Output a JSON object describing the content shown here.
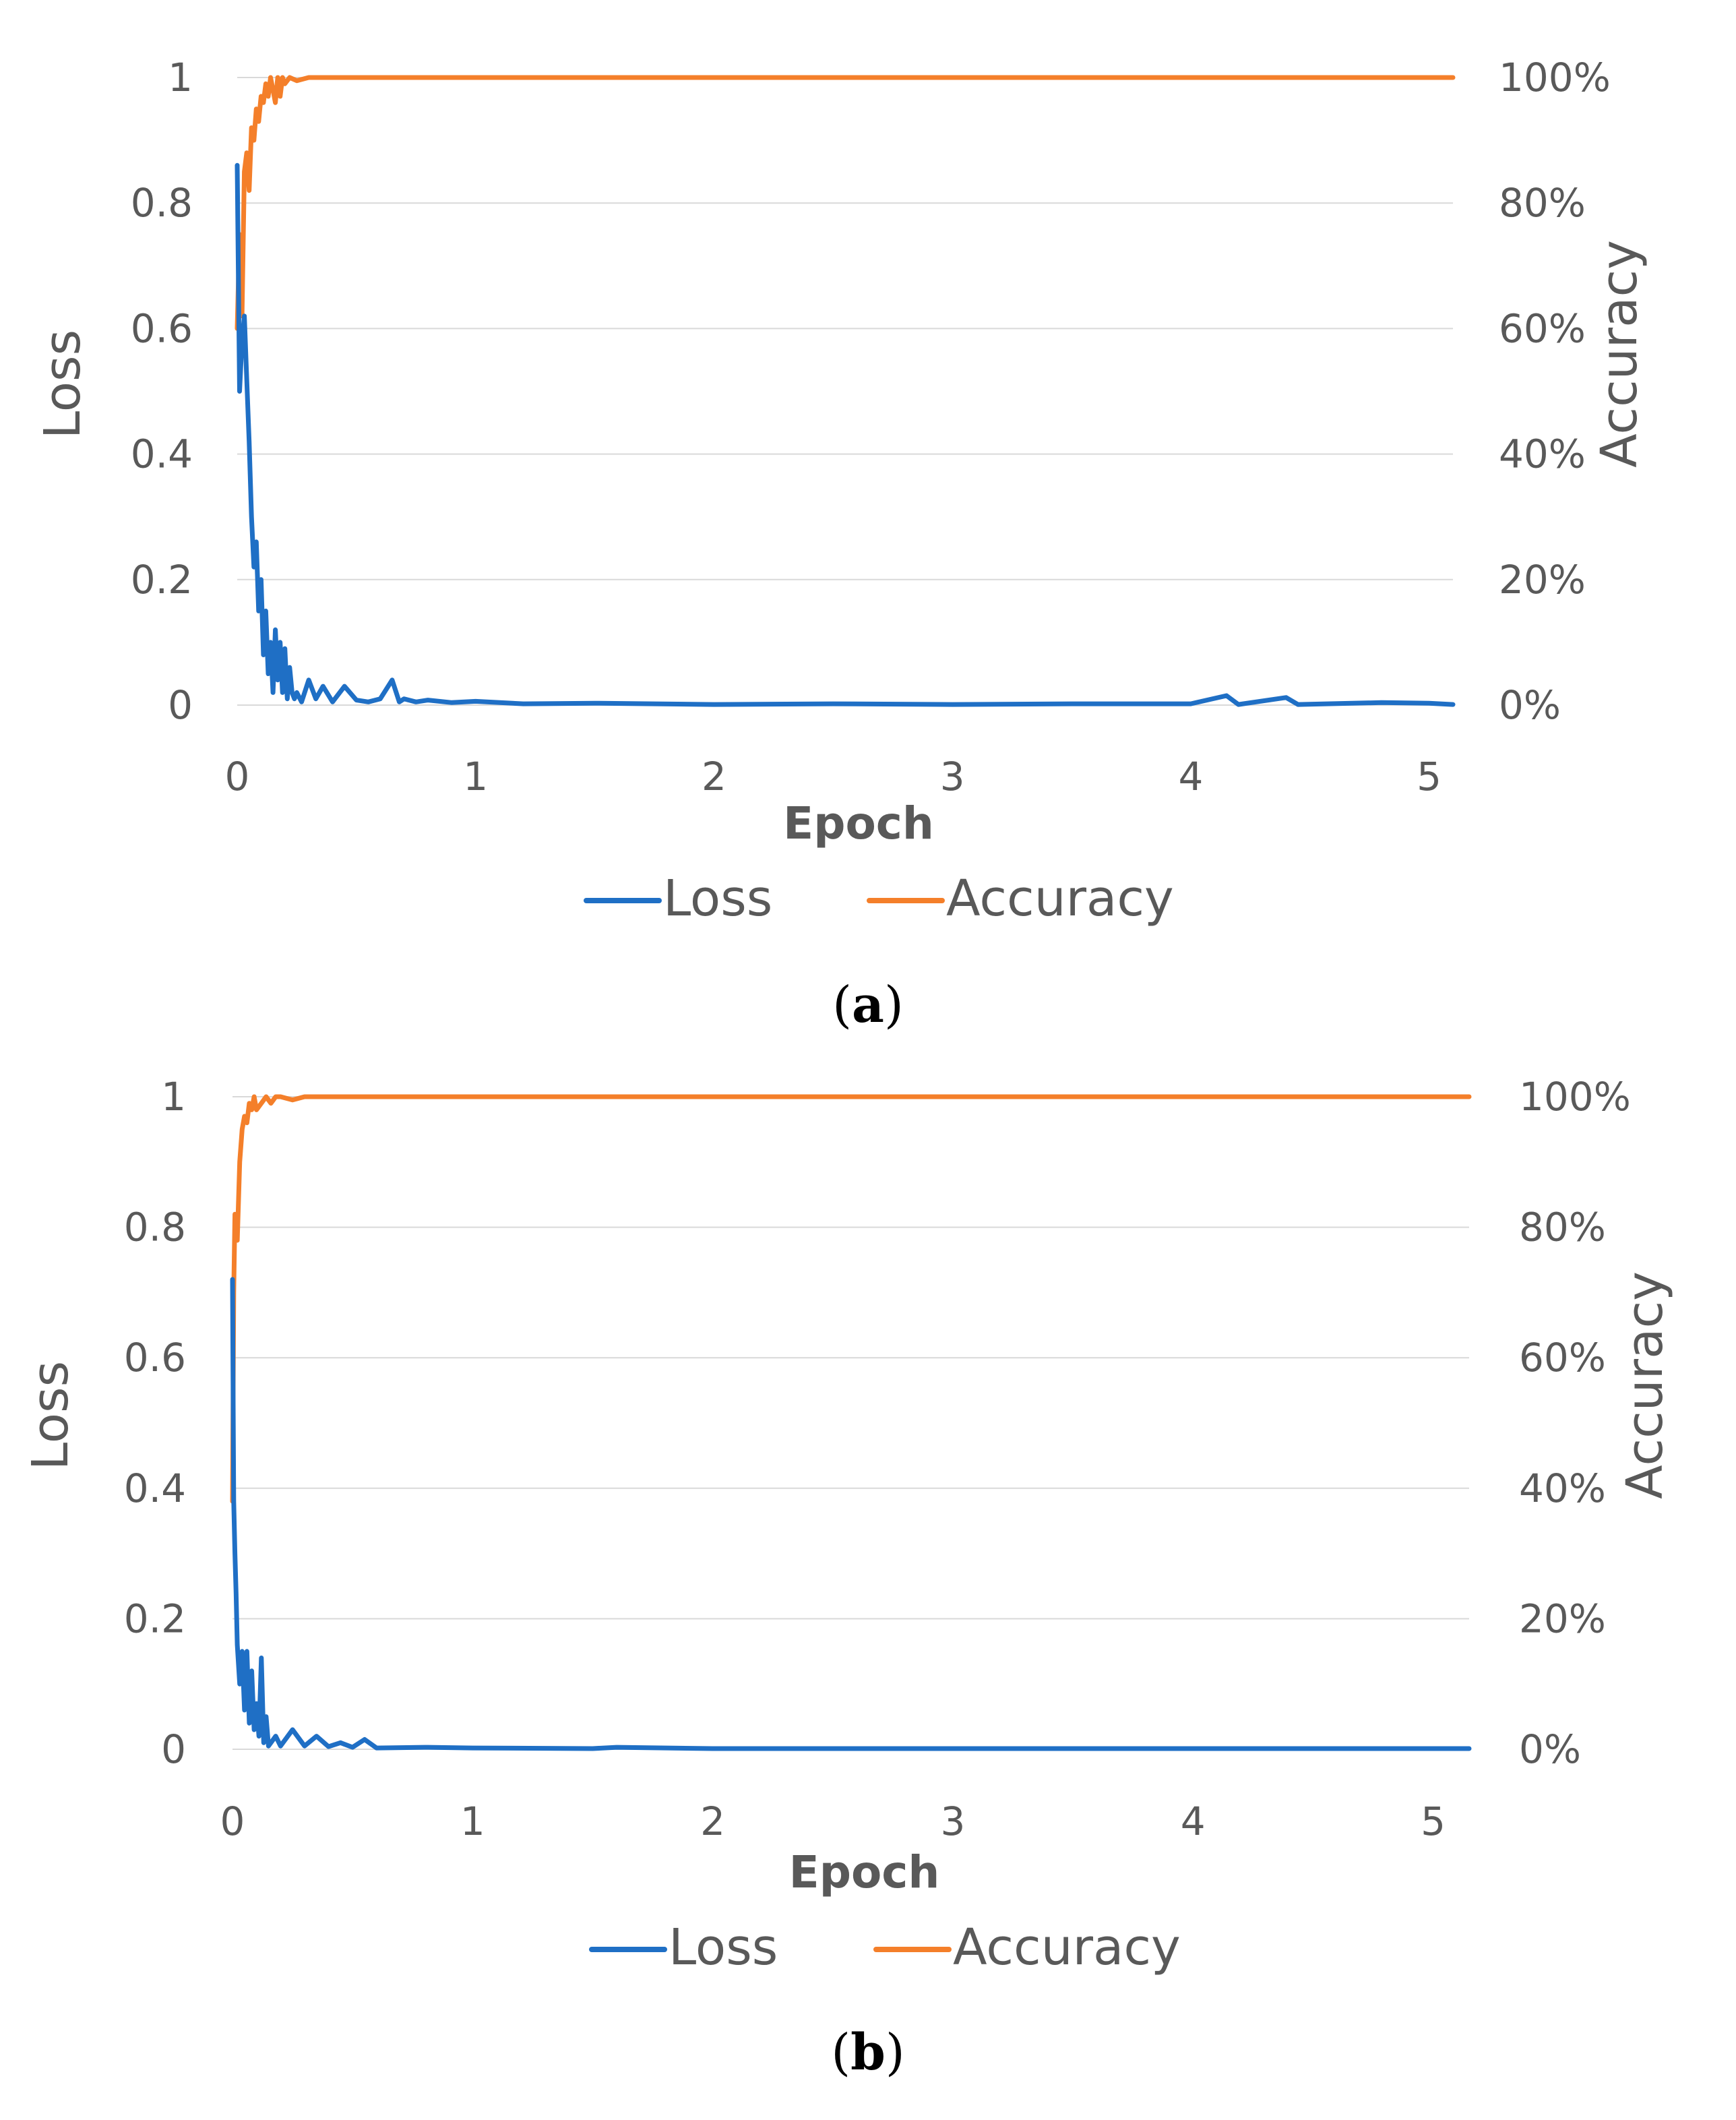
{
  "colors": {
    "loss": "#1f6fc5",
    "accuracy": "#f47f2a",
    "grid": "#d9d9d9",
    "tick_text": "#595959",
    "axis_title": "#595959",
    "caption": "#000000"
  },
  "panels": [
    {
      "caption_letter": "a",
      "xlabel": "Epoch",
      "ylabel_left": "Loss",
      "ylabel_right": "Accuracy",
      "x_ticks": [
        "0",
        "1",
        "2",
        "3",
        "4",
        "5"
      ],
      "y_left_ticks": [
        "0",
        "0.2",
        "0.4",
        "0.6",
        "0.8",
        "1"
      ],
      "y_right_ticks": [
        "0%",
        "20%",
        "40%",
        "60%",
        "80%",
        "100%"
      ],
      "legend": [
        "Loss",
        "Accuracy"
      ]
    },
    {
      "caption_letter": "b",
      "xlabel": "Epoch",
      "ylabel_left": "Loss",
      "ylabel_right": "Accuracy",
      "x_ticks": [
        "0",
        "1",
        "2",
        "3",
        "4",
        "5"
      ],
      "y_left_ticks": [
        "0",
        "0.2",
        "0.4",
        "0.6",
        "0.8",
        "1"
      ],
      "y_right_ticks": [
        "0%",
        "20%",
        "40%",
        "60%",
        "80%",
        "100%"
      ],
      "legend": [
        "Loss",
        "Accuracy"
      ]
    }
  ],
  "chart_data": [
    {
      "type": "line",
      "xlabel": "Epoch",
      "ylabel": "Loss",
      "y2label": "Accuracy",
      "xlim": [
        0,
        5.1
      ],
      "ylim": [
        0,
        1
      ],
      "y2lim": [
        0,
        1
      ],
      "grid": true,
      "legend_position": "bottom",
      "series": [
        {
          "name": "Loss",
          "axis": "left",
          "x": [
            0.0,
            0.01,
            0.02,
            0.03,
            0.04,
            0.05,
            0.06,
            0.07,
            0.08,
            0.09,
            0.1,
            0.11,
            0.12,
            0.13,
            0.14,
            0.15,
            0.16,
            0.17,
            0.18,
            0.19,
            0.2,
            0.21,
            0.22,
            0.23,
            0.24,
            0.25,
            0.27,
            0.3,
            0.33,
            0.36,
            0.4,
            0.45,
            0.5,
            0.55,
            0.6,
            0.65,
            0.68,
            0.7,
            0.75,
            0.8,
            0.9,
            1.0,
            1.2,
            1.5,
            2.0,
            2.5,
            3.0,
            3.5,
            4.0,
            4.15,
            4.2,
            4.4,
            4.45,
            4.8,
            5.0,
            5.1
          ],
          "y": [
            0.86,
            0.5,
            0.58,
            0.62,
            0.52,
            0.42,
            0.3,
            0.22,
            0.26,
            0.15,
            0.2,
            0.08,
            0.15,
            0.05,
            0.1,
            0.02,
            0.12,
            0.04,
            0.1,
            0.02,
            0.09,
            0.01,
            0.06,
            0.02,
            0.01,
            0.02,
            0.005,
            0.04,
            0.01,
            0.03,
            0.005,
            0.03,
            0.008,
            0.005,
            0.01,
            0.04,
            0.005,
            0.01,
            0.005,
            0.008,
            0.004,
            0.006,
            0.002,
            0.003,
            0.001,
            0.002,
            0.001,
            0.002,
            0.002,
            0.015,
            0.001,
            0.012,
            0.001,
            0.004,
            0.003,
            0.001
          ]
        },
        {
          "name": "Accuracy",
          "axis": "right",
          "x": [
            0.0,
            0.01,
            0.02,
            0.03,
            0.04,
            0.05,
            0.06,
            0.07,
            0.08,
            0.09,
            0.1,
            0.11,
            0.12,
            0.13,
            0.14,
            0.15,
            0.16,
            0.17,
            0.18,
            0.19,
            0.2,
            0.22,
            0.25,
            0.3,
            1.0,
            2.0,
            3.0,
            4.0,
            5.1
          ],
          "y": [
            0.6,
            0.75,
            0.62,
            0.85,
            0.88,
            0.82,
            0.92,
            0.9,
            0.95,
            0.93,
            0.97,
            0.96,
            0.99,
            0.97,
            1.0,
            0.98,
            0.96,
            1.0,
            0.97,
            1.0,
            0.99,
            1.0,
            0.995,
            1.0,
            1.0,
            1.0,
            1.0,
            1.0,
            1.0
          ]
        }
      ]
    },
    {
      "type": "line",
      "xlabel": "Epoch",
      "ylabel": "Loss",
      "y2label": "Accuracy",
      "xlim": [
        0,
        5.15
      ],
      "ylim": [
        0,
        1
      ],
      "y2lim": [
        0,
        1
      ],
      "grid": true,
      "legend_position": "bottom",
      "series": [
        {
          "name": "Loss",
          "axis": "left",
          "x": [
            0.0,
            0.005,
            0.01,
            0.015,
            0.02,
            0.03,
            0.04,
            0.05,
            0.06,
            0.07,
            0.08,
            0.09,
            0.1,
            0.11,
            0.12,
            0.13,
            0.14,
            0.15,
            0.16,
            0.18,
            0.2,
            0.25,
            0.3,
            0.35,
            0.4,
            0.45,
            0.5,
            0.55,
            0.6,
            0.8,
            1.0,
            1.5,
            1.6,
            2.0,
            3.0,
            4.0,
            5.15
          ],
          "y": [
            0.72,
            0.38,
            0.3,
            0.24,
            0.16,
            0.1,
            0.15,
            0.06,
            0.15,
            0.04,
            0.12,
            0.03,
            0.07,
            0.02,
            0.14,
            0.01,
            0.05,
            0.005,
            0.01,
            0.02,
            0.005,
            0.03,
            0.005,
            0.02,
            0.004,
            0.01,
            0.003,
            0.015,
            0.002,
            0.003,
            0.002,
            0.001,
            0.003,
            0.001,
            0.001,
            0.001,
            0.001
          ]
        },
        {
          "name": "Accuracy",
          "axis": "right",
          "x": [
            0.0,
            0.005,
            0.01,
            0.02,
            0.03,
            0.04,
            0.05,
            0.06,
            0.07,
            0.08,
            0.09,
            0.1,
            0.12,
            0.14,
            0.16,
            0.18,
            0.2,
            0.25,
            0.3,
            1.0,
            2.0,
            3.0,
            4.0,
            5.15
          ],
          "y": [
            0.38,
            0.7,
            0.82,
            0.78,
            0.9,
            0.95,
            0.97,
            0.96,
            0.99,
            0.98,
            1.0,
            0.98,
            0.99,
            1.0,
            0.99,
            1.0,
            1.0,
            0.995,
            1.0,
            1.0,
            1.0,
            1.0,
            1.0,
            1.0
          ]
        }
      ]
    }
  ]
}
